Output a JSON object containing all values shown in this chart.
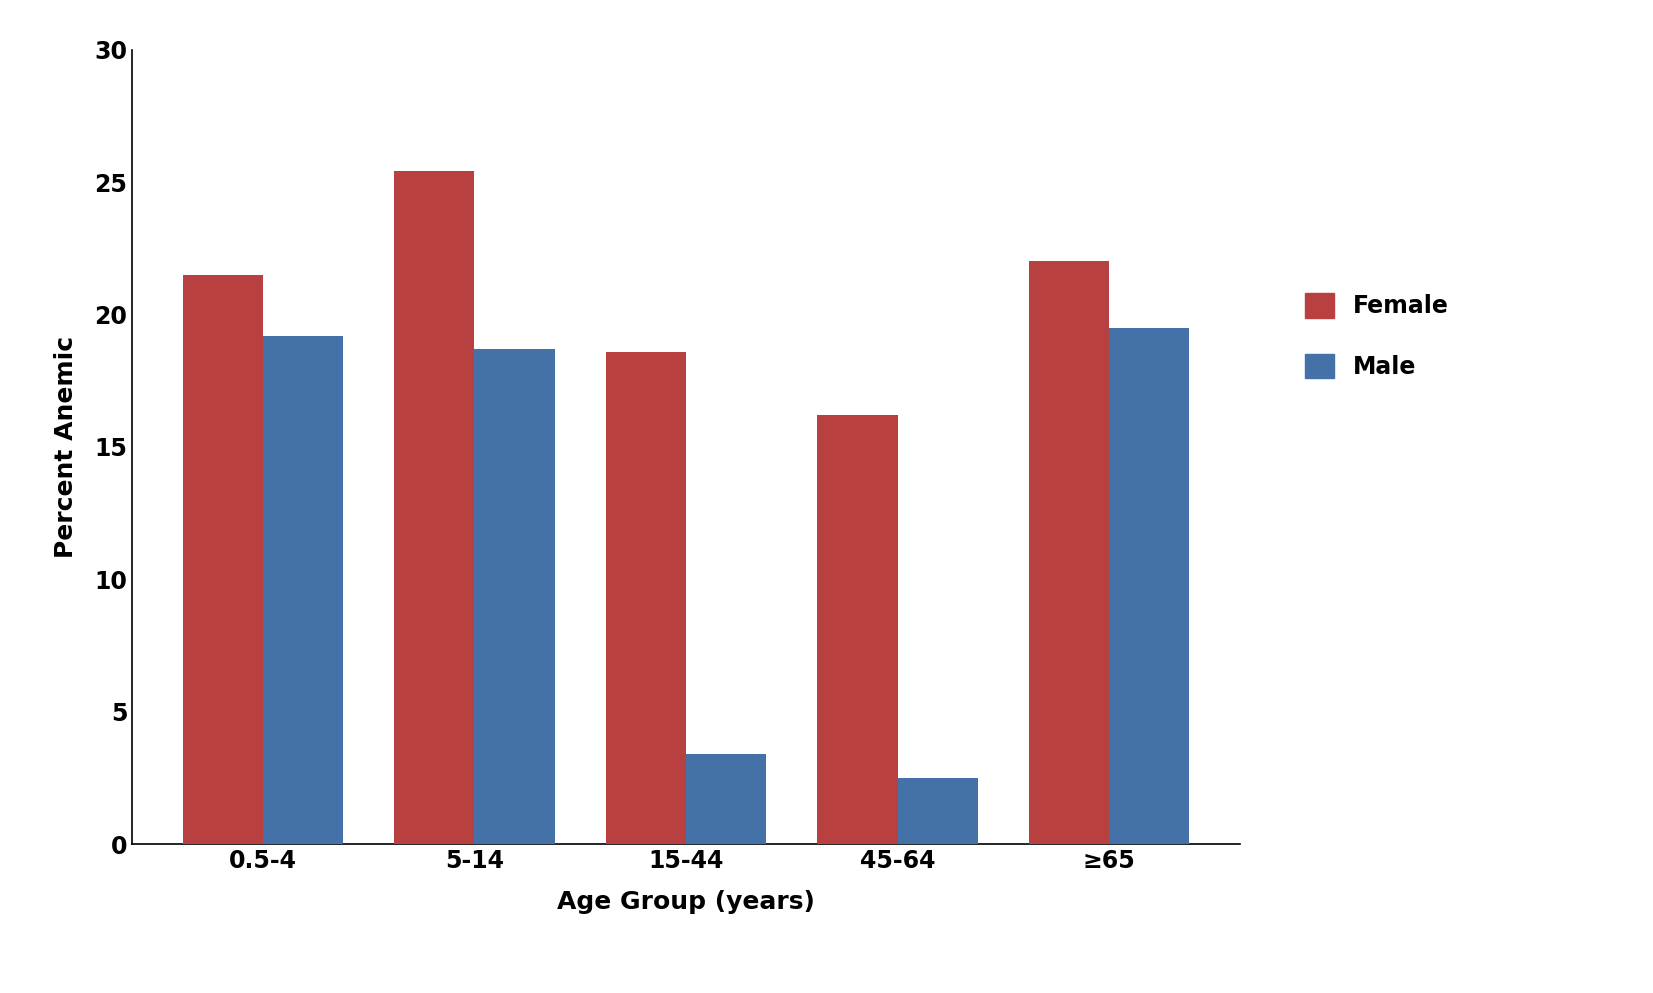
{
  "categories": [
    "0.5-4",
    "5-14",
    "15-44",
    "45-64",
    "≥65"
  ],
  "female_values": [
    21.5,
    25.4,
    18.6,
    16.2,
    22.0
  ],
  "male_values": [
    19.2,
    18.7,
    3.4,
    2.5,
    19.5
  ],
  "female_color": "#B94040",
  "male_color": "#4472A8",
  "ylabel": "Percent Anemic",
  "xlabel": "Age Group (years)",
  "ylim": [
    0,
    30
  ],
  "yticks": [
    0,
    5,
    10,
    15,
    20,
    25,
    30
  ],
  "legend_labels": [
    "Female",
    "Male"
  ],
  "bar_width": 0.38,
  "background_color": "#ffffff",
  "label_fontsize": 18,
  "tick_fontsize": 17,
  "legend_fontsize": 17
}
